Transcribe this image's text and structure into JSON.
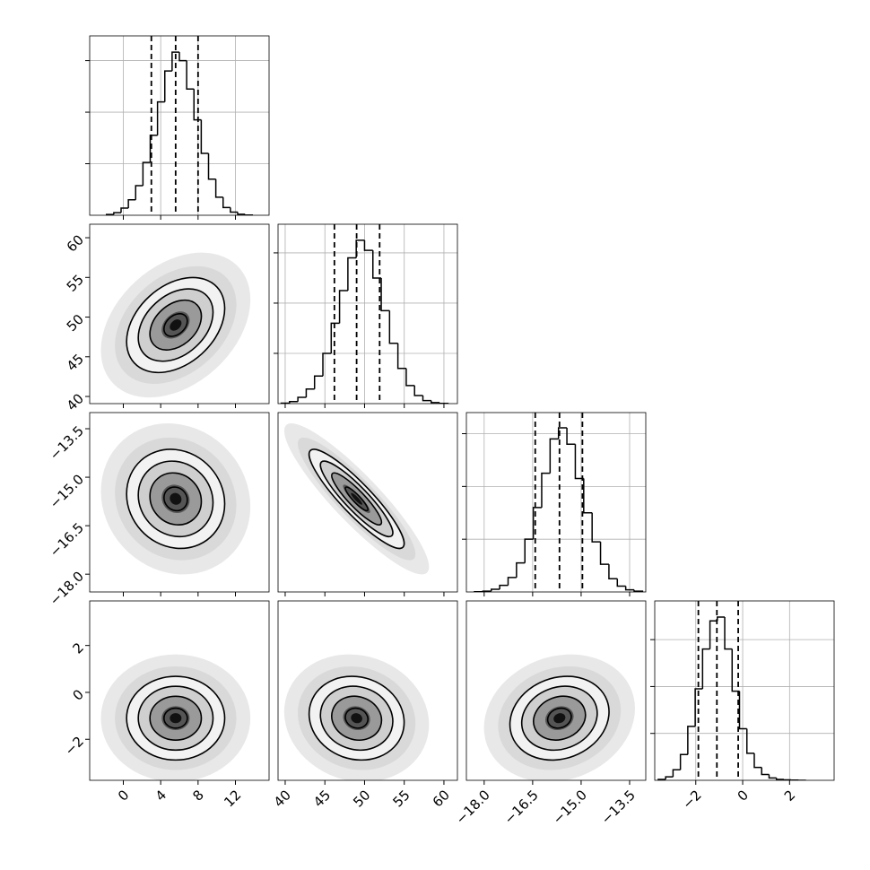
{
  "chart_data": {
    "type": "corner",
    "color": "#000000",
    "grid": true,
    "variables": [
      {
        "xlim": [
          -3.6,
          15.6
        ],
        "xticks": [
          0,
          4,
          8,
          12
        ],
        "bins": [
          -1.8,
          -1.02,
          -0.24,
          0.54,
          1.32,
          2.1,
          2.88,
          3.66,
          4.44,
          5.22,
          6,
          6.78,
          7.56,
          8.34,
          9.12,
          9.9,
          10.68,
          11.46,
          12.24,
          13.02,
          13.8
        ],
        "counts": [
          3,
          10,
          28,
          60,
          115,
          205,
          310,
          440,
          560,
          633,
          600,
          490,
          370,
          240,
          140,
          70,
          30,
          12,
          4,
          1
        ],
        "quantiles": [
          3.0,
          5.6,
          8.0
        ],
        "hist_ylim": [
          0,
          696
        ],
        "hist_yticks": [
          200,
          400,
          600
        ]
      },
      {
        "xlim": [
          39.1,
          61.7
        ],
        "xticks": [
          40,
          45,
          50,
          55,
          60
        ],
        "bins": [
          39.5,
          40.55,
          41.6,
          42.65,
          43.7,
          44.75,
          45.8,
          46.85,
          47.9,
          48.95,
          50,
          51.05,
          52.1,
          53.15,
          54.2,
          55.25,
          56.3,
          57.35,
          58.4,
          59.45,
          60.5
        ],
        "counts": [
          2,
          8,
          25,
          58,
          110,
          200,
          320,
          450,
          580,
          650,
          610,
          500,
          370,
          240,
          140,
          72,
          32,
          12,
          4,
          1
        ],
        "quantiles": [
          46.2,
          49.0,
          51.9
        ],
        "hist_ylim": [
          0,
          714
        ],
        "hist_yticks": [
          200,
          400,
          600
        ]
      },
      {
        "xlim": [
          -18.55,
          -13.0
        ],
        "xticks": [
          {
            "value": -18,
            "label": "−18.0"
          },
          {
            "value": -16.5,
            "label": "−16.5"
          },
          {
            "value": -15,
            "label": "−15.0"
          },
          {
            "value": -13.5,
            "label": "−13.5"
          }
        ],
        "bins": [
          -18.3,
          -18.04,
          -17.78,
          -17.52,
          -17.26,
          -17,
          -16.74,
          -16.48,
          -16.22,
          -15.96,
          -15.7,
          -15.44,
          -15.18,
          -14.92,
          -14.66,
          -14.4,
          -14.14,
          -13.88,
          -13.62,
          -13.36,
          -13.1
        ],
        "counts": [
          1,
          3,
          10,
          25,
          55,
          110,
          200,
          320,
          450,
          580,
          622,
          560,
          430,
          300,
          190,
          105,
          50,
          22,
          8,
          3
        ],
        "quantiles": [
          -16.42,
          -15.67,
          -14.96
        ],
        "hist_ylim": [
          0,
          680
        ],
        "hist_yticks": [
          200,
          400,
          600
        ]
      },
      {
        "xlim": [
          -3.75,
          3.9
        ],
        "xticks": [
          {
            "value": -2,
            "label": "−2"
          },
          0,
          2
        ],
        "bins": [
          -3.6,
          -3.285,
          -2.97,
          -2.655,
          -2.34,
          -2.025,
          -1.71,
          -1.395,
          -1.08,
          -0.765,
          -0.45,
          -0.135,
          0.18,
          0.495,
          0.81,
          1.125,
          1.44,
          1.755,
          2.07,
          2.385,
          2.7
        ],
        "counts": [
          4,
          15,
          45,
          110,
          230,
          390,
          560,
          680,
          696,
          560,
          380,
          220,
          115,
          55,
          25,
          10,
          4,
          2,
          1,
          0
        ],
        "quantiles": [
          -1.89,
          -1.1,
          -0.19
        ],
        "hist_ylim": [
          0,
          765
        ],
        "hist_yticks": [
          200,
          400,
          600
        ]
      }
    ],
    "correlations": [
      [
        0.35
      ],
      [
        -0.1,
        -0.9
      ],
      [
        0,
        -0.1,
        0.15
      ]
    ]
  }
}
